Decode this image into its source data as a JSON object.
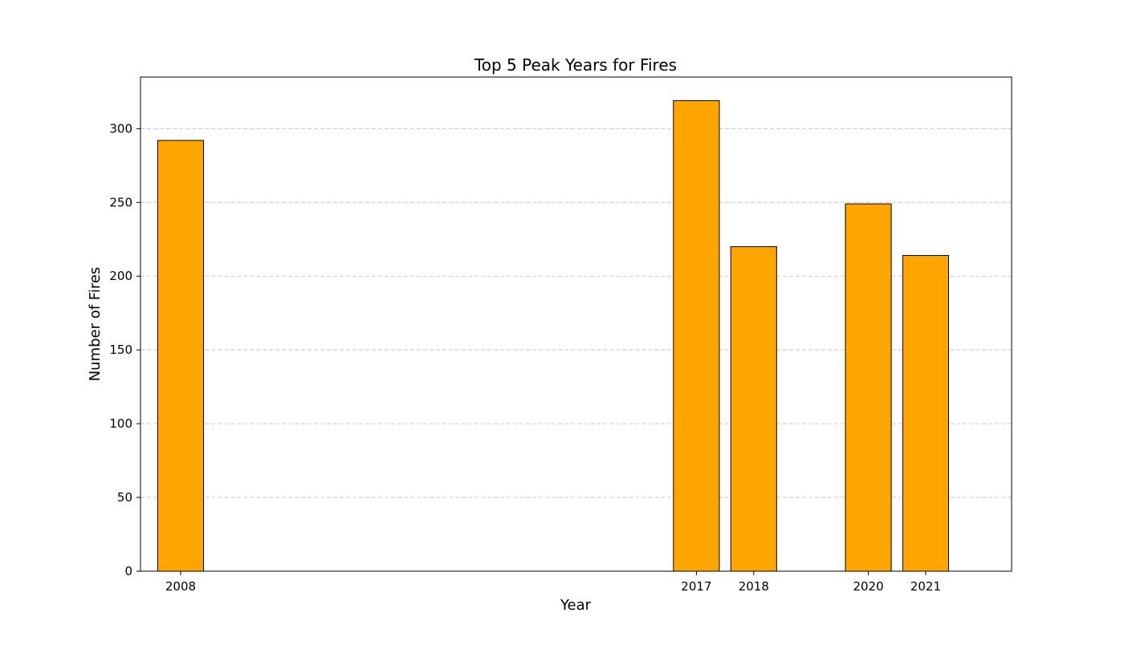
{
  "chart_data": {
    "type": "bar",
    "title": "Top 5 Peak Years for Fires",
    "xlabel": "Year",
    "ylabel": "Number of Fires",
    "categories": [
      "2008",
      "2017",
      "2018",
      "2020",
      "2021"
    ],
    "x": [
      2008,
      2017,
      2018,
      2020,
      2021
    ],
    "values": [
      292,
      319,
      220,
      249,
      214
    ],
    "xlim": [
      2007.3,
      2022.5
    ],
    "ylim": [
      0,
      335
    ],
    "yticks": [
      0,
      50,
      100,
      150,
      200,
      250,
      300
    ],
    "grid": {
      "axis": "y",
      "style": "dashed"
    },
    "legend": "none",
    "colors": {
      "bar_fill": "#FFA500",
      "bar_edge": "#000000",
      "grid": "#c8c8c8"
    }
  }
}
